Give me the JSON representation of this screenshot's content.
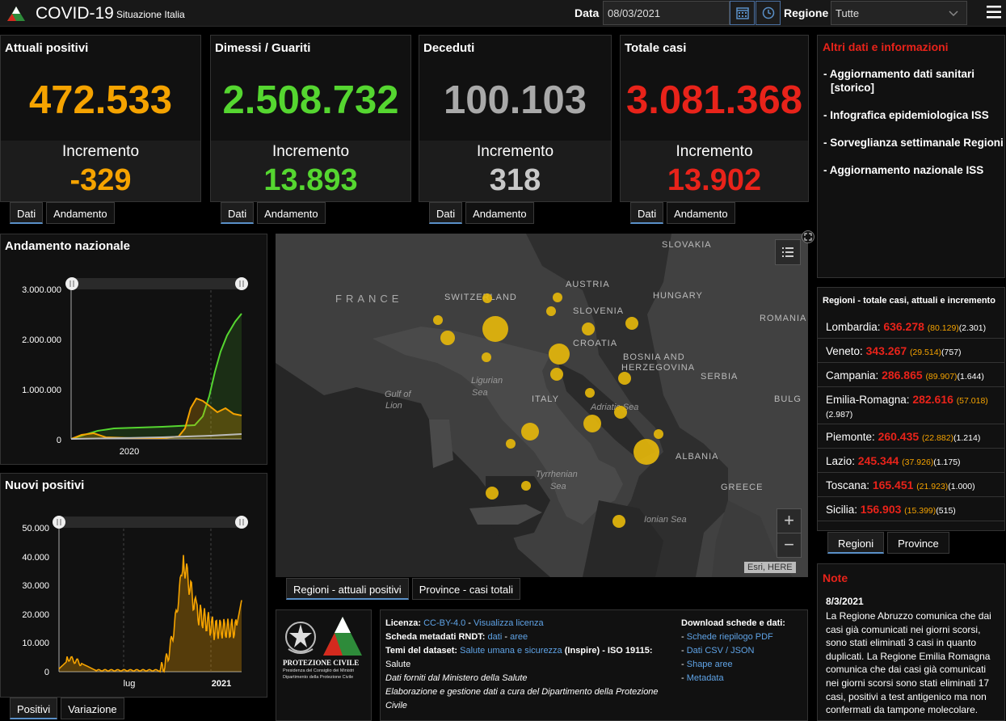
{
  "header": {
    "title": "COVID-19",
    "subtitle": "Situazione Italia",
    "date_label": "Data",
    "date_value": "08/03/2021",
    "region_label": "Regione",
    "region_value": "Tutte"
  },
  "cards": [
    {
      "title": "Attuali positivi",
      "value": "472.533",
      "inc_label": "Incremento",
      "inc_value": "-329",
      "color": "#f5a300",
      "inc_color": "#f5a300"
    },
    {
      "title": "Dimessi / Guariti",
      "value": "2.508.732",
      "inc_label": "Incremento",
      "inc_value": "13.893",
      "color": "#55d630",
      "inc_color": "#55d630"
    },
    {
      "title": "Deceduti",
      "value": "100.103",
      "inc_label": "Incremento",
      "inc_value": "318",
      "color": "#a9a9a9",
      "inc_color": "#c8c8c8"
    },
    {
      "title": "Totale casi",
      "value": "3.081.368",
      "inc_label": "Incremento",
      "inc_value": "13.902",
      "color": "#e8231a",
      "inc_color": "#e8231a"
    }
  ],
  "card_tabs": {
    "dati": "Dati",
    "andamento": "Andamento"
  },
  "info": {
    "title": "Altri dati e informazioni",
    "items": [
      "- Aggiornamento dati sanitari",
      "[storico]",
      "- Infografica epidemiologica ISS",
      "- Sorveglianza settimanale Regioni",
      "- Aggiornamento nazionale ISS"
    ]
  },
  "regions": {
    "title": "Regioni - totale casi, attuali e incremento",
    "rows": [
      {
        "name": "Lombardia:",
        "total": "636.278",
        "current": "(80.129)",
        "inc": "(2.301)"
      },
      {
        "name": "Veneto:",
        "total": "343.267",
        "current": "(29.514)",
        "inc": "(757)"
      },
      {
        "name": "Campania:",
        "total": "286.865",
        "current": "(89.907)",
        "inc": "(1.644)"
      },
      {
        "name": "Emilia-Romagna:",
        "total": "282.616",
        "current": "(57.018)",
        "inc": "(2.987)"
      },
      {
        "name": "Piemonte:",
        "total": "260.435",
        "current": "(22.882)",
        "inc": "(1.214)"
      },
      {
        "name": "Lazio:",
        "total": "245.344",
        "current": "(37.926)",
        "inc": "(1.175)"
      },
      {
        "name": "Toscana:",
        "total": "165.451",
        "current": "(21.923)",
        "inc": "(1.000)"
      },
      {
        "name": "Sicilia:",
        "total": "156.903",
        "current": "(15.399)",
        "inc": "(515)"
      }
    ],
    "tab_regioni": "Regioni",
    "tab_province": "Province"
  },
  "note": {
    "title": "Note",
    "date": "8/3/2021",
    "text": "La Regione Abruzzo comunica che dai casi già comunicati nei giorni scorsi, sono stati eliminati 3 casi in quanto duplicati. La Regione Emilia Romagna comunica che dai casi già comunicati nei giorni scorsi sono stati eliminati 17 casi, positivi a test antigenico ma non confermati da tampone molecolare."
  },
  "chart1": {
    "title": "Andamento nazionale",
    "y_ticks": [
      "3.000.000",
      "2.000.000",
      "1.000.000",
      "0"
    ],
    "x_ticks": [
      "2020"
    ]
  },
  "chart2": {
    "title": "Nuovi positivi",
    "y_ticks": [
      "50.000",
      "40.000",
      "30.000",
      "20.000",
      "10.000",
      "0"
    ],
    "x_ticks": [
      "lug",
      "2021"
    ],
    "tab_positivi": "Positivi",
    "tab_variazione": "Variazione"
  },
  "map": {
    "labels": {
      "slovakia": "SLOVAKIA",
      "france": "FRANCE",
      "switzerland": "SWITZERLAND",
      "austria": "AUSTRIA",
      "hungary": "HUNGARY",
      "slovenia": "SLOVENIA",
      "romania": "ROMANIA",
      "croatia": "CROATIA",
      "bosnia1": "BOSNIA AND",
      "bosnia2": "HERZEGOVINA",
      "serbia": "SERBIA",
      "ligurian1": "Ligurian",
      "ligurian2": "Sea",
      "gulf1": "Gulf of",
      "gulf2": "Lion",
      "italy": "ITALY",
      "adriatic": "Adriatic Sea",
      "bulgaria": "BULG",
      "albania": "ALBANIA",
      "tyrrhenian1": "Tyrrhenian",
      "tyrrhenian2": "Sea",
      "greece": "GREECE",
      "ionian": "Ionian Sea",
      "attribution": "Esri, HERE"
    },
    "tab_regioni": "Regioni - attuali positivi",
    "tab_province": "Province - casi totali"
  },
  "logo": {
    "line1": "PROTEZIONE CIVILE",
    "line2": "Presidenza del Consiglio dei Ministri",
    "line3": "Dipartimento della Protezione Civile"
  },
  "footer": {
    "licenza_label": "Licenza:",
    "licenza_link": "CC-BY-4.0",
    "licenza_sep": " - ",
    "licenza_link2": "Visualizza licenza",
    "scheda_label": "Scheda metadati RNDT:",
    "scheda_link1": "dati",
    "scheda_sep": " - ",
    "scheda_link2": "aree",
    "temi_label": "Temi del dataset:",
    "temi_link": "Salute umana e sicurezza",
    "temi_rest": "(Inspire) - ISO 19115:",
    "temi_rest2": "Salute",
    "fonte": "Dati forniti dal Ministero della Salute",
    "elab": "Elaborazione e gestione dati a cura del Dipartimento della Protezione Civile",
    "download_title": "Download schede e dati:",
    "downloads": [
      "Schede riepilogo PDF",
      "Dati CSV / JSON",
      "Shape aree",
      "Metadata"
    ]
  },
  "colors": {
    "positivi": "#f5a300",
    "guariti": "#55d630",
    "deceduti": "#a9a9a9",
    "totale": "#e8231a",
    "link": "#5fa3e6",
    "accent": "#5a90c8"
  }
}
